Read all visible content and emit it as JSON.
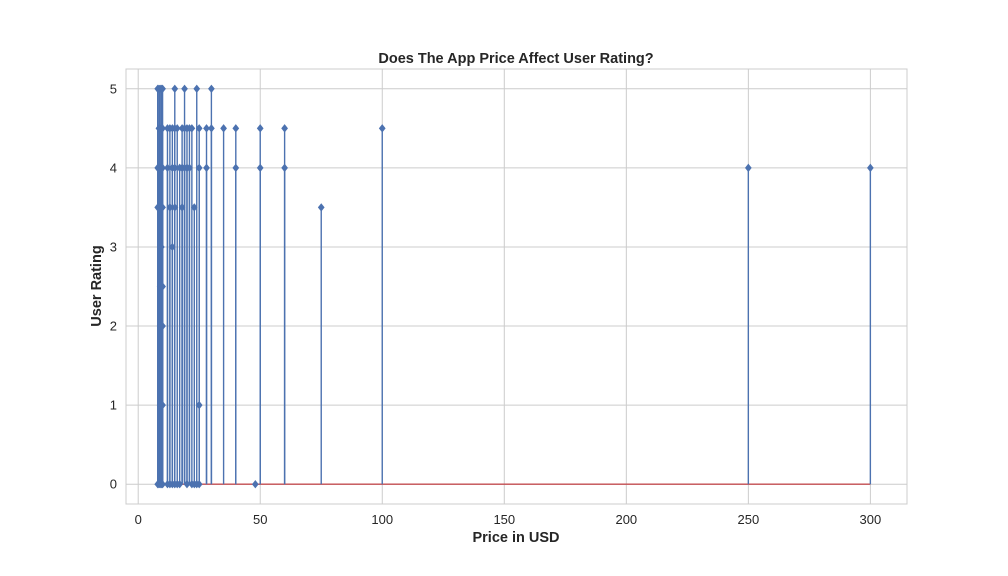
{
  "chart_data": {
    "type": "stem",
    "title": "Does The App Price Affect User Rating?",
    "xlabel": "Price in USD",
    "ylabel": "User Rating",
    "xlim": [
      -5,
      315
    ],
    "ylim": [
      -0.25,
      5.25
    ],
    "xticks": [
      0,
      50,
      100,
      150,
      200,
      250,
      300
    ],
    "yticks": [
      0,
      1,
      2,
      3,
      4,
      5
    ],
    "grid": true,
    "colors": {
      "stem": "#4c72b0",
      "marker": "#4c72b0",
      "baseline": "#c44e52",
      "grid": "#cccccc"
    },
    "marker": "diamond",
    "points": [
      {
        "x": 7.99,
        "y": 5
      },
      {
        "x": 7.99,
        "y": 4
      },
      {
        "x": 7.99,
        "y": 3.5
      },
      {
        "x": 7.99,
        "y": 0
      },
      {
        "x": 8.49,
        "y": 5
      },
      {
        "x": 8.49,
        "y": 4.5
      },
      {
        "x": 8.49,
        "y": 0
      },
      {
        "x": 8.99,
        "y": 5
      },
      {
        "x": 8.99,
        "y": 4.5
      },
      {
        "x": 8.99,
        "y": 4
      },
      {
        "x": 8.99,
        "y": 3.5
      },
      {
        "x": 8.99,
        "y": 2.5
      },
      {
        "x": 8.99,
        "y": 2
      },
      {
        "x": 8.99,
        "y": 1
      },
      {
        "x": 8.99,
        "y": 0
      },
      {
        "x": 9.49,
        "y": 5
      },
      {
        "x": 9.49,
        "y": 4
      },
      {
        "x": 9.49,
        "y": 3
      },
      {
        "x": 9.49,
        "y": 0
      },
      {
        "x": 9.99,
        "y": 5
      },
      {
        "x": 9.99,
        "y": 4.5
      },
      {
        "x": 9.99,
        "y": 4
      },
      {
        "x": 9.99,
        "y": 3.5
      },
      {
        "x": 9.99,
        "y": 2.5
      },
      {
        "x": 9.99,
        "y": 2
      },
      {
        "x": 9.99,
        "y": 1
      },
      {
        "x": 9.99,
        "y": 0
      },
      {
        "x": 11.99,
        "y": 4.5
      },
      {
        "x": 11.99,
        "y": 4
      },
      {
        "x": 11.99,
        "y": 0
      },
      {
        "x": 12.99,
        "y": 4.5
      },
      {
        "x": 12.99,
        "y": 3.5
      },
      {
        "x": 12.99,
        "y": 0
      },
      {
        "x": 13.99,
        "y": 4.5
      },
      {
        "x": 13.99,
        "y": 4
      },
      {
        "x": 13.99,
        "y": 3
      },
      {
        "x": 13.99,
        "y": 0
      },
      {
        "x": 14.99,
        "y": 5
      },
      {
        "x": 14.99,
        "y": 4.5
      },
      {
        "x": 14.99,
        "y": 4
      },
      {
        "x": 14.99,
        "y": 3.5
      },
      {
        "x": 14.99,
        "y": 0
      },
      {
        "x": 15.99,
        "y": 4.5
      },
      {
        "x": 15.99,
        "y": 0
      },
      {
        "x": 16.99,
        "y": 4
      },
      {
        "x": 16.99,
        "y": 0
      },
      {
        "x": 17.99,
        "y": 4.5
      },
      {
        "x": 17.99,
        "y": 4
      },
      {
        "x": 17.99,
        "y": 3.5
      },
      {
        "x": 18.99,
        "y": 5
      },
      {
        "x": 18.99,
        "y": 4.5
      },
      {
        "x": 18.99,
        "y": 4
      },
      {
        "x": 19.99,
        "y": 4.5
      },
      {
        "x": 19.99,
        "y": 4
      },
      {
        "x": 19.99,
        "y": 0
      },
      {
        "x": 20.99,
        "y": 4.5
      },
      {
        "x": 20.99,
        "y": 4
      },
      {
        "x": 21.99,
        "y": 4.5
      },
      {
        "x": 21.99,
        "y": 0
      },
      {
        "x": 22.99,
        "y": 3.5
      },
      {
        "x": 22.99,
        "y": 0
      },
      {
        "x": 23.99,
        "y": 5
      },
      {
        "x": 23.99,
        "y": 0
      },
      {
        "x": 24.99,
        "y": 4.5
      },
      {
        "x": 24.99,
        "y": 4
      },
      {
        "x": 24.99,
        "y": 1
      },
      {
        "x": 24.99,
        "y": 0
      },
      {
        "x": 27.99,
        "y": 4.5
      },
      {
        "x": 27.99,
        "y": 4
      },
      {
        "x": 29.99,
        "y": 5
      },
      {
        "x": 29.99,
        "y": 4.5
      },
      {
        "x": 34.99,
        "y": 4.5
      },
      {
        "x": 39.99,
        "y": 4.5
      },
      {
        "x": 39.99,
        "y": 4
      },
      {
        "x": 47.99,
        "y": 0
      },
      {
        "x": 49.99,
        "y": 4.5
      },
      {
        "x": 49.99,
        "y": 4
      },
      {
        "x": 59.99,
        "y": 4.5
      },
      {
        "x": 59.99,
        "y": 4
      },
      {
        "x": 74.99,
        "y": 3.5
      },
      {
        "x": 99.99,
        "y": 4.5
      },
      {
        "x": 249.99,
        "y": 4
      },
      {
        "x": 299.99,
        "y": 4
      }
    ]
  }
}
